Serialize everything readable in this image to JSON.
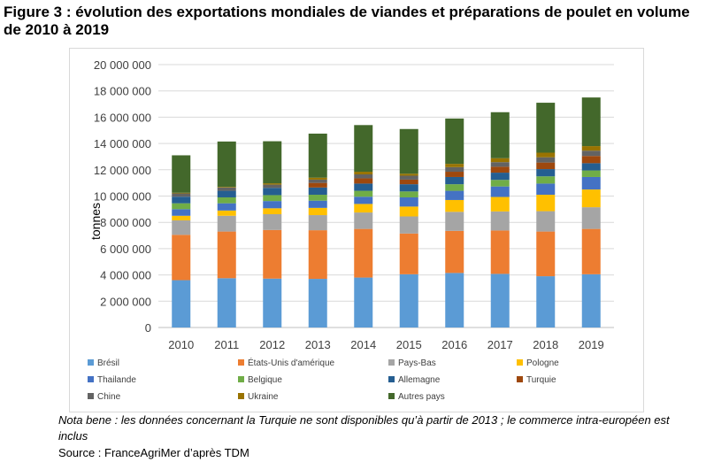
{
  "figure": {
    "title": "Figure 3 : évolution des exportations mondiales de viandes et préparations de poulet en volume de 2010 à 2019",
    "note": "Nota bene : les données concernant la Turquie ne sont disponibles qu’à partir de 2013 ; le commerce intra-européen est inclus",
    "source": "Source : FranceAgriMer d’après TDM"
  },
  "chart_data": {
    "type": "bar",
    "stacked": true,
    "title": "",
    "xlabel": "",
    "ylabel": "tonnes",
    "ylim": [
      0,
      20000000
    ],
    "yticks": [
      "0",
      "2 000 000",
      "4 000 000",
      "6 000 000",
      "8 000 000",
      "10 000 000",
      "12 000 000",
      "14 000 000",
      "16 000 000",
      "18 000 000",
      "20 000 000"
    ],
    "ytick_values": [
      0,
      2000000,
      4000000,
      6000000,
      8000000,
      10000000,
      12000000,
      14000000,
      16000000,
      18000000,
      20000000
    ],
    "grid": true,
    "legend_position": "bottom",
    "categories": [
      "2010",
      "2011",
      "2012",
      "2013",
      "2014",
      "2015",
      "2016",
      "2017",
      "2018",
      "2019"
    ],
    "series": [
      {
        "name": "Brésil",
        "color": "#5b9bd5",
        "values": [
          3600000,
          3750000,
          3720000,
          3700000,
          3800000,
          4050000,
          4150000,
          4080000,
          3900000,
          4050000
        ]
      },
      {
        "name": "États-Unis d'amérique",
        "color": "#ed7d31",
        "values": [
          3450000,
          3550000,
          3700000,
          3700000,
          3700000,
          3100000,
          3200000,
          3300000,
          3400000,
          3450000
        ]
      },
      {
        "name": "Pays-Bas",
        "color": "#a5a5a5",
        "values": [
          1100000,
          1200000,
          1200000,
          1150000,
          1250000,
          1300000,
          1450000,
          1450000,
          1550000,
          1650000
        ]
      },
      {
        "name": "Pologne",
        "color": "#ffc000",
        "values": [
          350000,
          400000,
          450000,
          550000,
          650000,
          750000,
          900000,
          1100000,
          1250000,
          1350000
        ]
      },
      {
        "name": "Thaïlande",
        "color": "#4472c4",
        "values": [
          500000,
          550000,
          550000,
          550000,
          550000,
          700000,
          700000,
          800000,
          850000,
          950000
        ]
      },
      {
        "name": "Belgique",
        "color": "#70ad47",
        "values": [
          450000,
          450000,
          450000,
          450000,
          450000,
          450000,
          500000,
          500000,
          550000,
          500000
        ]
      },
      {
        "name": "Allemagne",
        "color": "#255e91",
        "values": [
          500000,
          500000,
          550000,
          550000,
          550000,
          550000,
          550000,
          550000,
          550000,
          550000
        ]
      },
      {
        "name": "Turquie",
        "color": "#9e480e",
        "values": [
          0,
          0,
          0,
          350000,
          400000,
          350000,
          400000,
          450000,
          500000,
          550000
        ]
      },
      {
        "name": "Chine",
        "color": "#636363",
        "values": [
          250000,
          250000,
          250000,
          250000,
          300000,
          300000,
          350000,
          350000,
          400000,
          400000
        ]
      },
      {
        "name": "Ukraine",
        "color": "#997300",
        "values": [
          50000,
          50000,
          100000,
          150000,
          200000,
          150000,
          250000,
          300000,
          350000,
          350000
        ]
      },
      {
        "name": "Autres pays",
        "color": "#43682b",
        "values": [
          2850000,
          3450000,
          3200000,
          3350000,
          3550000,
          3400000,
          3450000,
          3500000,
          3800000,
          3700000
        ]
      }
    ],
    "legend_labels": [
      "Brésil",
      "États-Unis d'amérique",
      "Pays-Bas",
      "Pologne",
      "Thailande",
      "Belgique",
      "Allemagne",
      "Turquie",
      "Chine",
      "Ukraine",
      "Autres pays"
    ]
  }
}
